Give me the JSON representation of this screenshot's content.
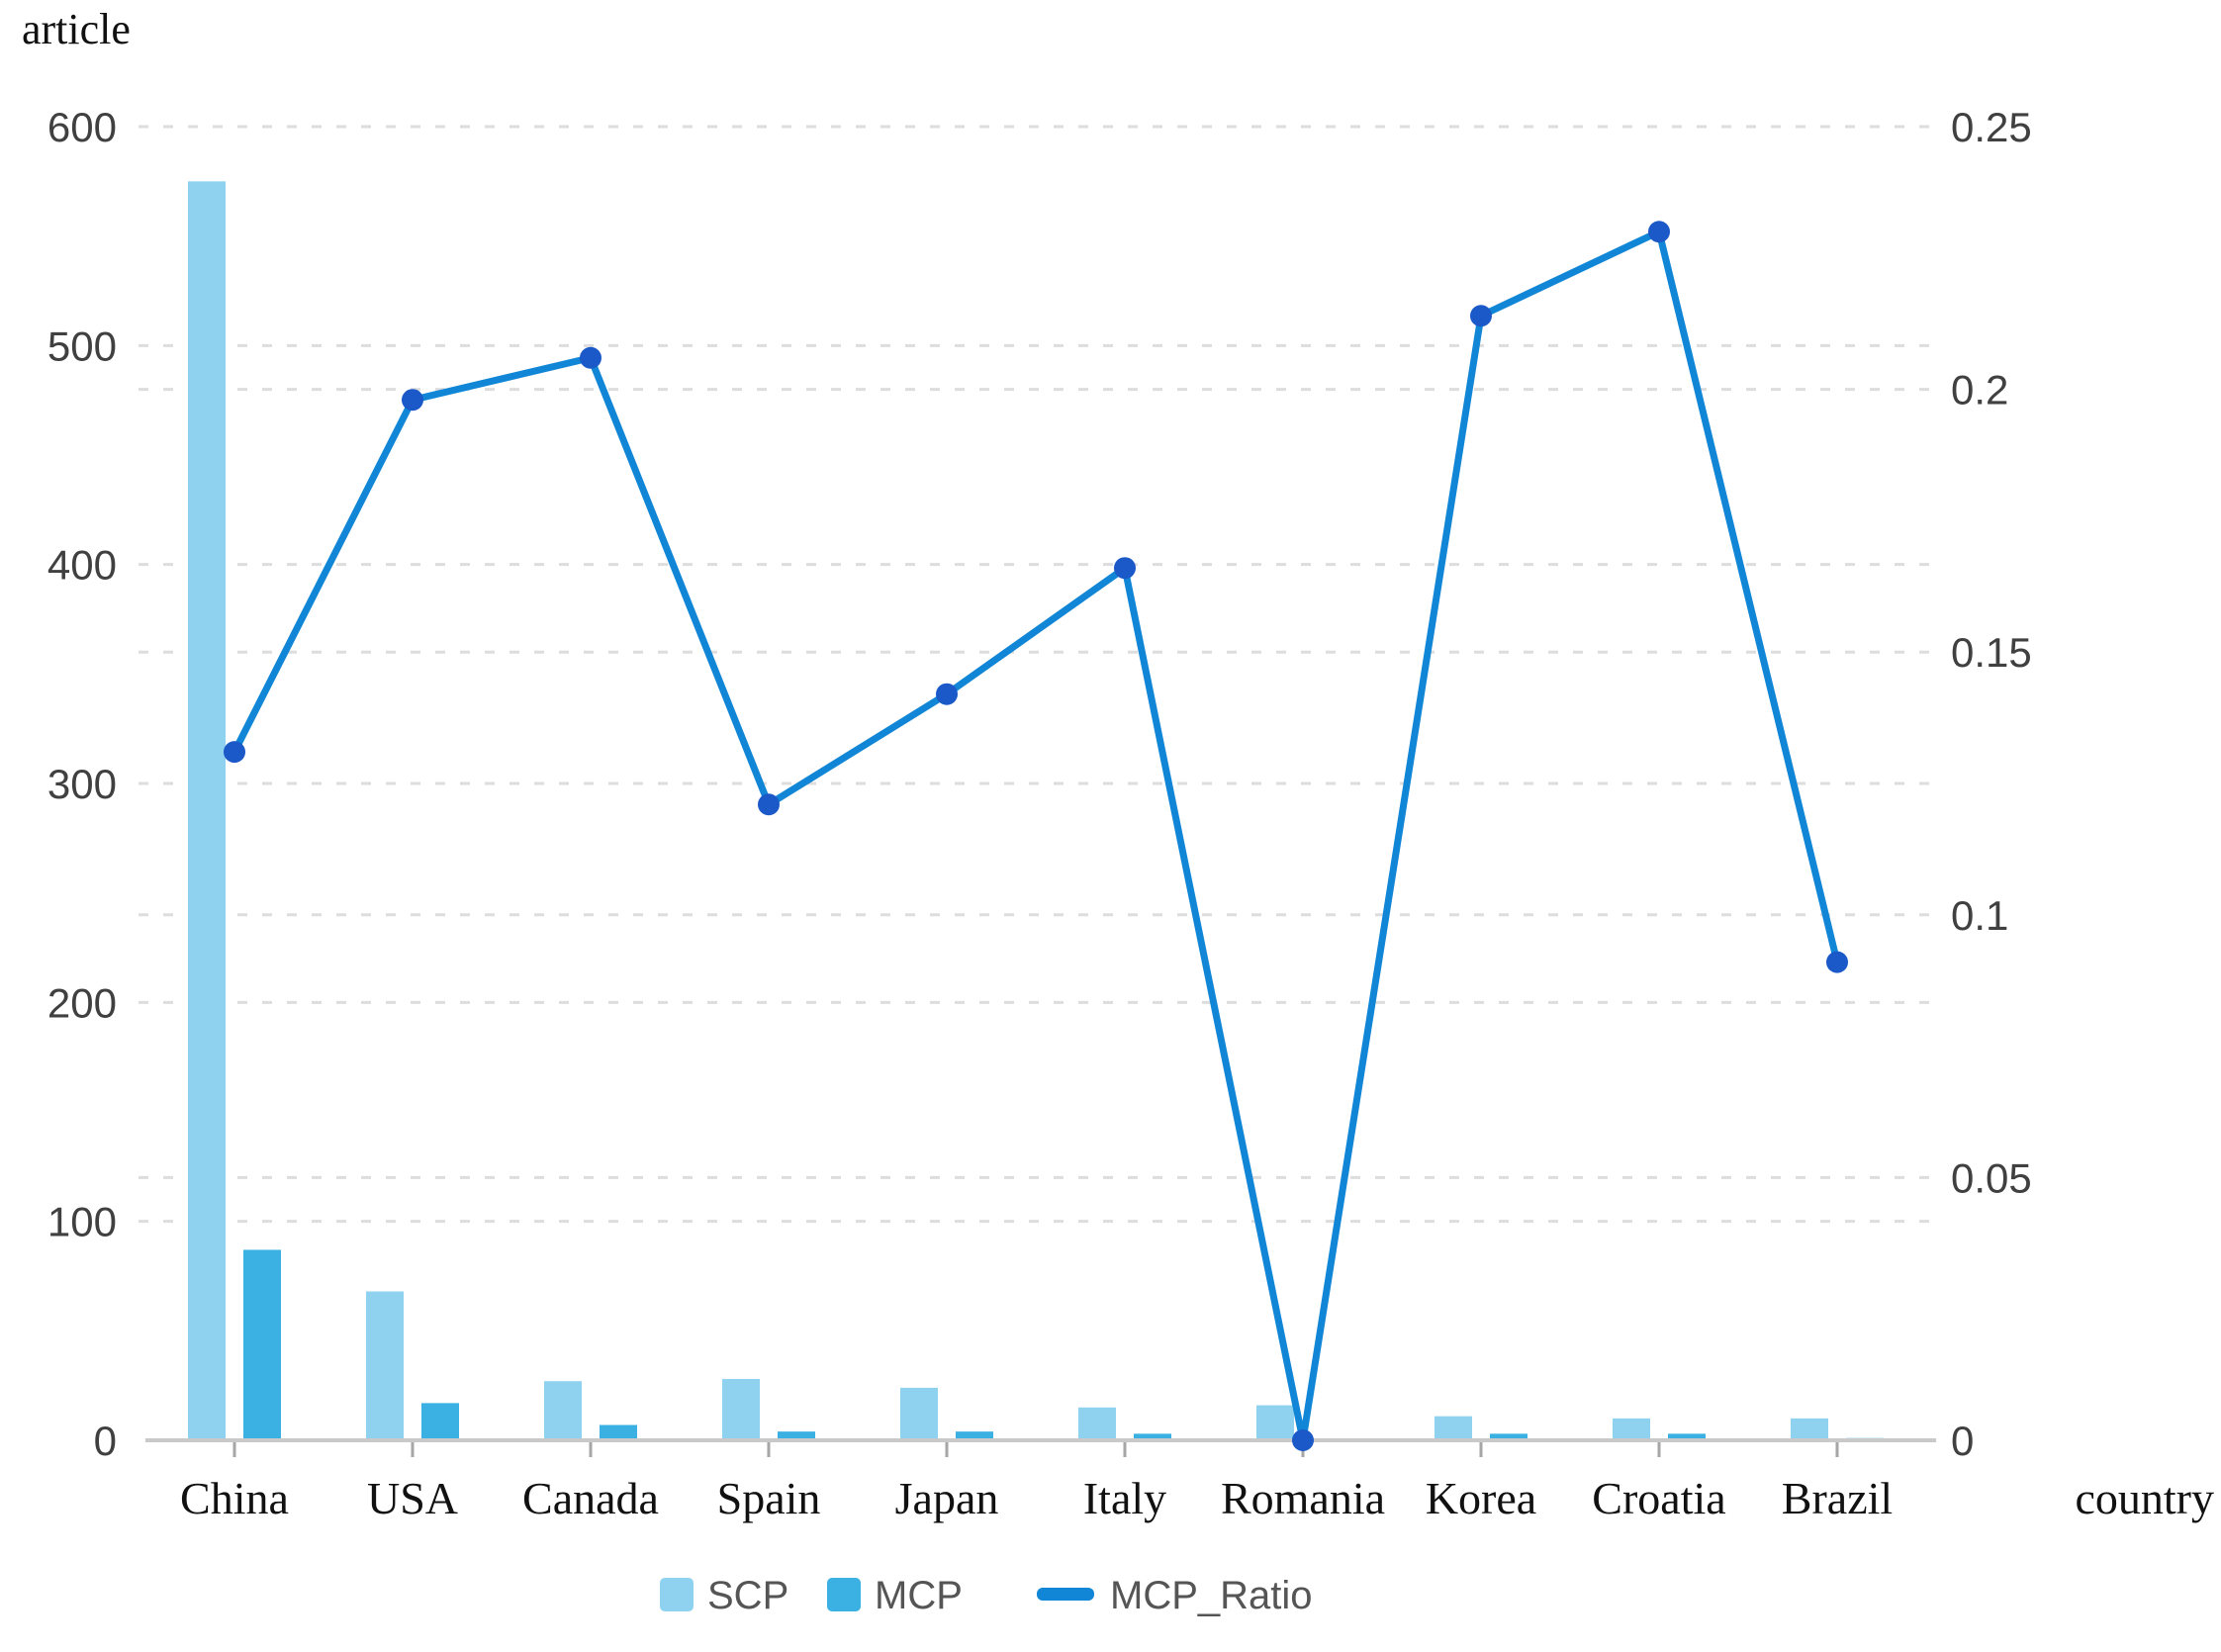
{
  "page": {
    "background": "#ffffff"
  },
  "left_axis": {
    "title": "article",
    "tick_labels": [
      "0",
      "100",
      "200",
      "300",
      "400",
      "500",
      "600"
    ],
    "tick_values": [
      0,
      100,
      200,
      300,
      400,
      500,
      600
    ],
    "max": 600
  },
  "right_axis": {
    "tick_labels": [
      "0",
      "0.05",
      "0.1",
      "0.15",
      "0.2",
      "0.25"
    ],
    "tick_values": [
      0,
      0.05,
      0.1,
      0.15,
      0.2,
      0.25
    ],
    "max": 0.25
  },
  "x_axis": {
    "title": "country"
  },
  "legend": {
    "items": [
      {
        "label": "SCP",
        "marker": "square",
        "color": "#8ed2f0"
      },
      {
        "label": "MCP",
        "marker": "square",
        "color": "#3ab1e2"
      },
      {
        "label": "MCP_Ratio",
        "marker": "dash",
        "color": "#1186d6"
      }
    ]
  },
  "colors": {
    "scp_bar": "#8ed2f0",
    "mcp_bar": "#3ab1e2",
    "ratio_line": "#1186d6",
    "ratio_point": "#1b59c8",
    "axis_line": "#c9c9c9",
    "tick_mark": "#a6a6a6",
    "gridline": "#dddddd",
    "numeric_label": "#404040",
    "category_label": "#111111",
    "legend_text": "#555555"
  },
  "chart_data": {
    "type": "combo-bar-line",
    "title": "",
    "xlabel": "country",
    "ylabel_left": "article",
    "categories": [
      "China",
      "USA",
      "Canada",
      "Spain",
      "Japan",
      "Italy",
      "Romania",
      "Korea",
      "Croatia",
      "Brazil"
    ],
    "series": [
      {
        "name": "SCP",
        "type": "bar",
        "axis": "left",
        "color": "#8ed2f0",
        "values": [
          575,
          68,
          27,
          28,
          24,
          15,
          16,
          11,
          10,
          10
        ]
      },
      {
        "name": "MCP",
        "type": "bar",
        "axis": "left",
        "color": "#3ab1e2",
        "values": [
          87,
          17,
          7,
          4,
          4,
          3,
          0,
          3,
          3,
          1
        ]
      },
      {
        "name": "MCP_Ratio",
        "type": "line",
        "axis": "right",
        "color": "#1186d6",
        "point_color": "#1b59c8",
        "values": [
          0.131,
          0.198,
          0.206,
          0.121,
          0.142,
          0.166,
          0,
          0.214,
          0.23,
          0.091
        ]
      }
    ],
    "left_ylim": [
      0,
      600
    ],
    "right_ylim": [
      0,
      0.25
    ],
    "grid": "horizontal dashed gridlines for both left (every 100) and right (every 0.05) axes, interleaved",
    "legend_position": "bottom-center"
  }
}
